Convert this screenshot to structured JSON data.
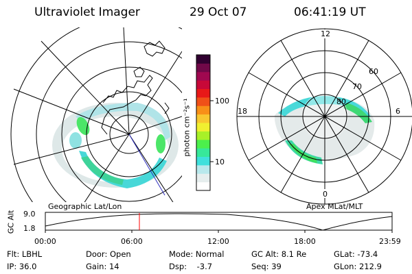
{
  "header": {
    "instrument": "Ultraviolet Imager",
    "date": "29 Oct 07",
    "time": "06:41:19 UT"
  },
  "left_panel": {
    "label": "Geographic Lat/Lon"
  },
  "right_panel": {
    "label": "Apex MLat/MLT",
    "mlt_labels": {
      "top": "12",
      "left": "18",
      "right": "6",
      "bottom": "0"
    },
    "lat_labels": [
      "60",
      "70",
      "80"
    ]
  },
  "colorbar": {
    "unit_label": "photon cm⁻²s⁻¹",
    "tick_labels": [
      "100",
      "10"
    ],
    "colors": [
      "#ffffff",
      "#e6eeee",
      "#b8e8ec",
      "#3fe0dc",
      "#37e89a",
      "#4cf04c",
      "#a8f028",
      "#f0f030",
      "#f8c830",
      "#f89018",
      "#f05018",
      "#e81818",
      "#c80838",
      "#a00850",
      "#700848",
      "#300030"
    ]
  },
  "timeline": {
    "y_label": "GC Alt",
    "y_ticks": [
      "9.0",
      "1.8"
    ],
    "x_ticks": [
      "00:00",
      "06:00",
      "12:00",
      "18:00",
      "23:59"
    ]
  },
  "info": {
    "row1": [
      "Flt: LBHL",
      "Door: Open",
      "Mode: Normal",
      "GC Alt: 8.1 Re",
      "GLat: -73.4"
    ],
    "row2": [
      "IP: 36.0",
      "Gain: 14",
      "Dsp:    -3.7",
      "Seq: 39",
      "GLon: 212.9"
    ]
  },
  "marker_color": "#ff0000"
}
